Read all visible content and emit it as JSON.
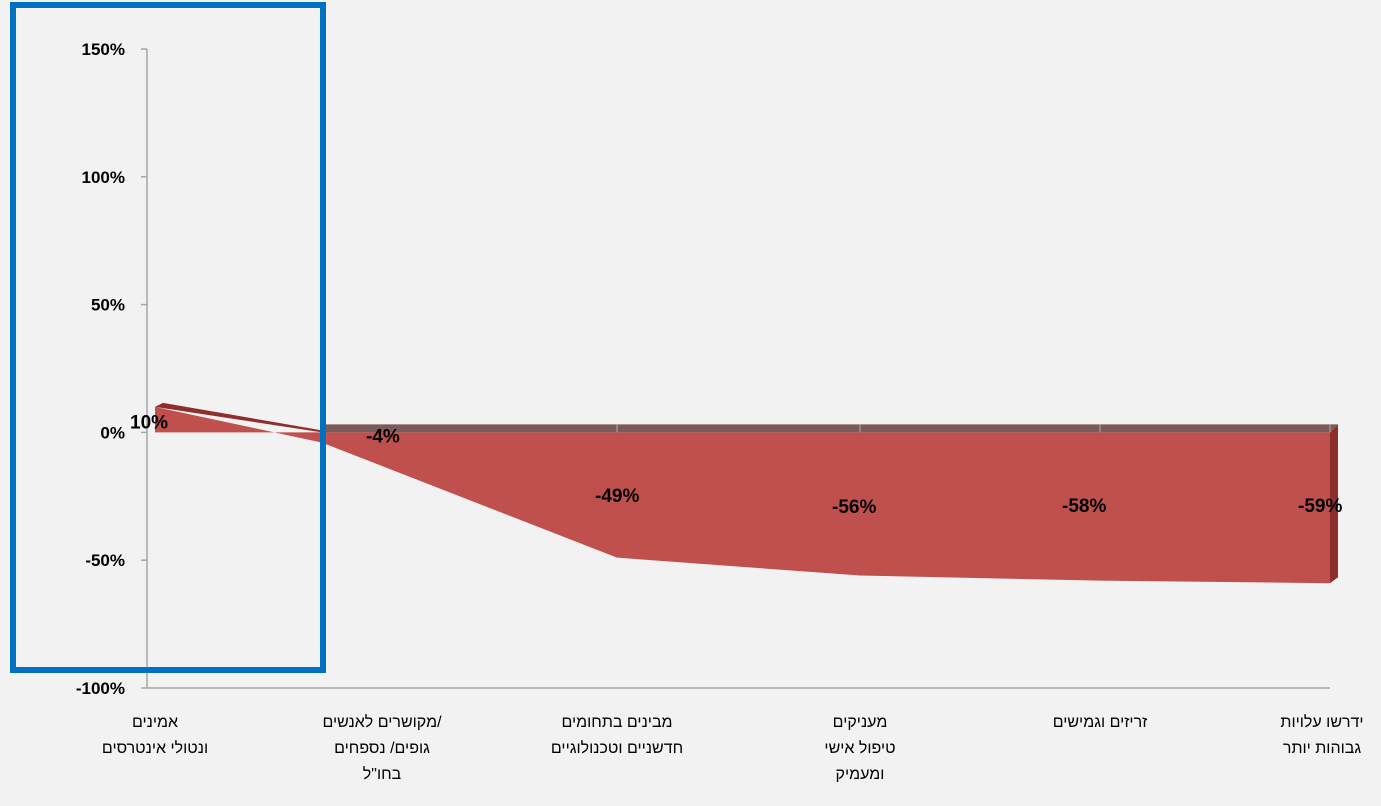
{
  "chart_data": {
    "type": "area",
    "categories": [
      [
        "אמינים",
        "ונטולי אינטרסים"
      ],
      [
        "מקושרים לאנשים/",
        "גופים/ נספחים",
        "בחו\"ל"
      ],
      [
        "מבינים בתחומים",
        "חדשניים וטכנולוגיים"
      ],
      [
        "מעניקים",
        "טיפול אישי",
        "ומעמיק"
      ],
      [
        "זריזים וגמישים"
      ],
      [
        "ידרשו עלויות",
        "גבוהות יותר"
      ]
    ],
    "values": [
      10,
      -4,
      -49,
      -56,
      -58,
      -59
    ],
    "data_labels": [
      "10%",
      "-4%",
      "-49%",
      "-56%",
      "-58%",
      "-59%"
    ],
    "y_ticks": [
      "150%",
      "100%",
      "50%",
      "0%",
      "-50%",
      "-100%"
    ],
    "ylim": [
      -100,
      150
    ],
    "colors": {
      "fill": "#c0504d",
      "side": "#8e2f2d",
      "top": "#7a5a5a",
      "highlight_box": "#0070c0",
      "axis": "#a6a6a6"
    },
    "highlight": {
      "category_index": 0
    }
  }
}
